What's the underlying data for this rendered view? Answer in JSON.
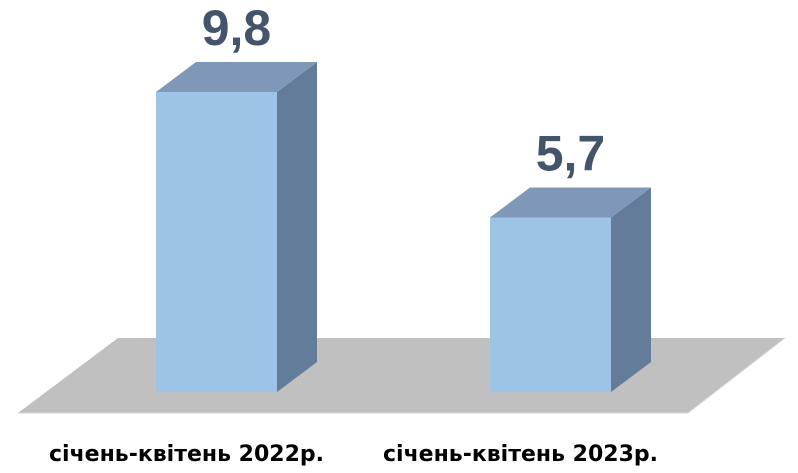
{
  "chart_data": {
    "type": "bar3d",
    "categories": [
      "січень-квітень 2022р.",
      "січень-квітень 2023р."
    ],
    "values": [
      9.8,
      5.7
    ],
    "value_labels": [
      "9,8",
      "5,7"
    ],
    "color": "#9dc3e6"
  }
}
